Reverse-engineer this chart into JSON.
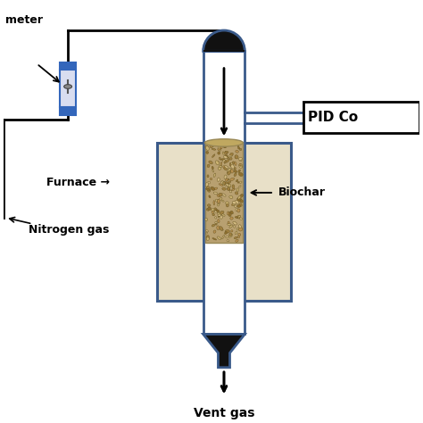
{
  "bg_color": "#ffffff",
  "line_color": "#000000",
  "blue_color": "#3a5a8a",
  "furnace_fill": "#e8e0c8",
  "biochar_fill": "#b8a070",
  "flowmeter_blue": "#3366bb",
  "furnace_label": "Furnace →",
  "biochar_label": "Biochar",
  "nitrogen_label": "Nitrogen gas",
  "vent_label": "Vent gas",
  "pid_label": "PID Co"
}
